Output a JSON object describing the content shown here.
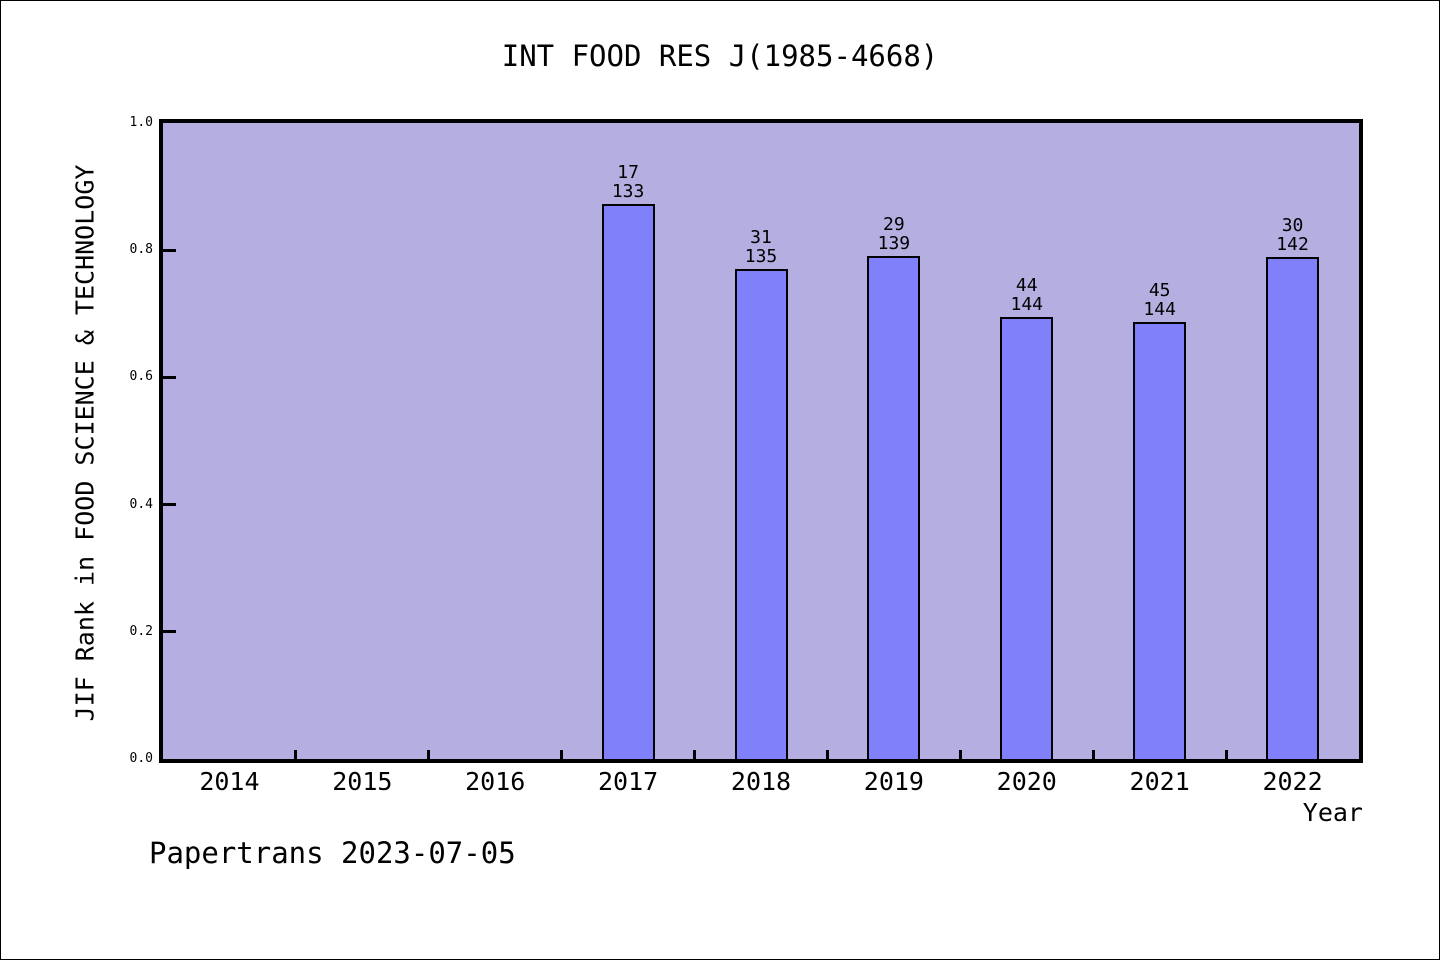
{
  "footer": {
    "text": "Papertrans 2023-07-05"
  },
  "chart_data": {
    "type": "bar",
    "title": "INT FOOD RES J(1985-4668)",
    "xlabel": "Year",
    "ylabel": "JIF Rank in FOOD SCIENCE & TECHNOLOGY",
    "categories": [
      "2014",
      "2015",
      "2016",
      "2017",
      "2018",
      "2019",
      "2020",
      "2021",
      "2022"
    ],
    "values": [
      null,
      null,
      null,
      0.8722,
      0.7704,
      0.7914,
      0.6944,
      0.6875,
      0.7887
    ],
    "bar_annotations": [
      {
        "category": "2017",
        "rank": "17",
        "total": "133"
      },
      {
        "category": "2018",
        "rank": "31",
        "total": "135"
      },
      {
        "category": "2019",
        "rank": "29",
        "total": "139"
      },
      {
        "category": "2020",
        "rank": "44",
        "total": "144"
      },
      {
        "category": "2021",
        "rank": "45",
        "total": "144"
      },
      {
        "category": "2022",
        "rank": "30",
        "total": "142"
      }
    ],
    "ylim": [
      0.0,
      1.0
    ],
    "yticks": [
      "0.0",
      "0.2",
      "0.4",
      "0.6",
      "0.8",
      "1.0"
    ],
    "grid": false,
    "legend": null,
    "colors": {
      "bar_fill": "#8080fa",
      "bar_edge": "#000000",
      "plot_bg": "#b4aee1",
      "axis": "#000000",
      "figure_bg": "#ffffff"
    }
  }
}
